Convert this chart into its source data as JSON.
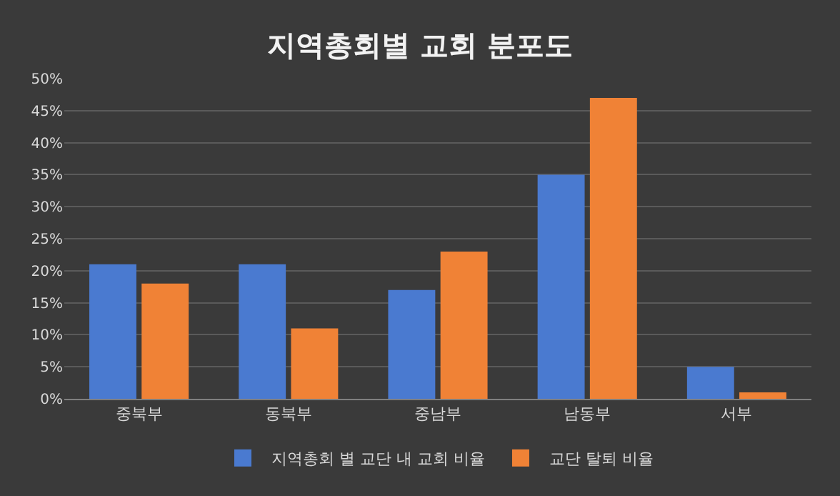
{
  "chart_data": {
    "type": "bar",
    "title": "지역총회별 교회 분포도",
    "categories": [
      "중북부",
      "동북부",
      "중남부",
      "남동부",
      "서부"
    ],
    "series": [
      {
        "name": "지역총회 별 교단 내 교회 비율",
        "color": "#4a7ad0",
        "values": [
          21,
          21,
          17,
          35,
          5
        ]
      },
      {
        "name": "교단 탈퇴 비율",
        "color": "#f08236",
        "values": [
          18,
          11,
          23,
          47,
          1
        ]
      }
    ],
    "ylim": [
      0,
      50
    ],
    "yticks": [
      {
        "value": 0,
        "label": "0%"
      },
      {
        "value": 5,
        "label": "5%"
      },
      {
        "value": 10,
        "label": "10%"
      },
      {
        "value": 15,
        "label": "15%"
      },
      {
        "value": 20,
        "label": "20%"
      },
      {
        "value": 25,
        "label": "25%"
      },
      {
        "value": 30,
        "label": "30%"
      },
      {
        "value": 35,
        "label": "35%"
      },
      {
        "value": 40,
        "label": "40%"
      },
      {
        "value": 45,
        "label": "45%"
      },
      {
        "value": 50,
        "label": "50%"
      }
    ],
    "grid": "y",
    "legend": "bottom"
  }
}
